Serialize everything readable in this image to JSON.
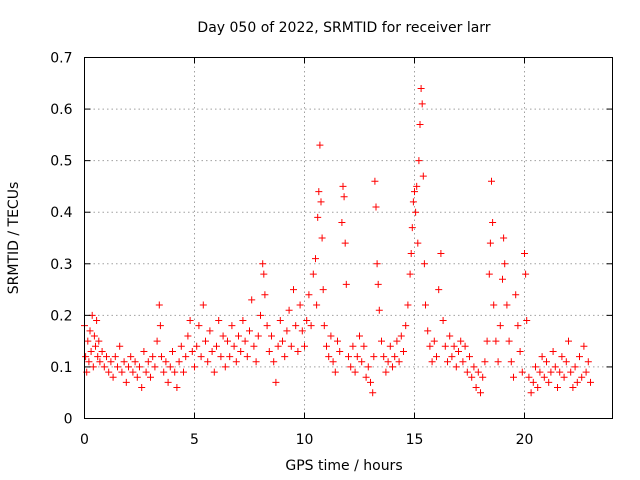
{
  "chart_data": {
    "type": "scatter",
    "title": "Day 050 of 2022, SRMTID for receiver larr",
    "xlabel": "GPS time / hours",
    "ylabel": "SRMTID / TECUs",
    "xlim": [
      0,
      24
    ],
    "ylim": [
      0,
      0.7
    ],
    "xticks": [
      0,
      5,
      10,
      15,
      20
    ],
    "xtick_labels": [
      "0",
      "5",
      "10",
      "15",
      "20"
    ],
    "yticks": [
      0,
      0.1,
      0.2,
      0.3,
      0.4,
      0.5,
      0.6,
      0.7
    ],
    "ytick_labels": [
      "0",
      "0.1",
      "0.2",
      "0.3",
      "0.4",
      "0.5",
      "0.6",
      "0.7"
    ],
    "grid": true,
    "marker": "+",
    "color": "#ff0000",
    "series": [
      {
        "name": "SRMTID",
        "points": [
          [
            0.0,
            0.18
          ],
          [
            0.05,
            0.12
          ],
          [
            0.1,
            0.09
          ],
          [
            0.15,
            0.15
          ],
          [
            0.2,
            0.11
          ],
          [
            0.25,
            0.17
          ],
          [
            0.3,
            0.13
          ],
          [
            0.35,
            0.2
          ],
          [
            0.4,
            0.1
          ],
          [
            0.45,
            0.16
          ],
          [
            0.5,
            0.14
          ],
          [
            0.55,
            0.19
          ],
          [
            0.6,
            0.12
          ],
          [
            0.65,
            0.15
          ],
          [
            0.7,
            0.11
          ],
          [
            0.8,
            0.13
          ],
          [
            0.9,
            0.1
          ],
          [
            1.0,
            0.12
          ],
          [
            1.1,
            0.09
          ],
          [
            1.2,
            0.11
          ],
          [
            1.3,
            0.08
          ],
          [
            1.4,
            0.12
          ],
          [
            1.5,
            0.1
          ],
          [
            1.6,
            0.14
          ],
          [
            1.7,
            0.09
          ],
          [
            1.8,
            0.11
          ],
          [
            1.9,
            0.07
          ],
          [
            2.0,
            0.1
          ],
          [
            2.1,
            0.12
          ],
          [
            2.2,
            0.09
          ],
          [
            2.3,
            0.11
          ],
          [
            2.4,
            0.08
          ],
          [
            2.5,
            0.1
          ],
          [
            2.6,
            0.06
          ],
          [
            2.7,
            0.13
          ],
          [
            2.8,
            0.09
          ],
          [
            2.9,
            0.11
          ],
          [
            3.0,
            0.08
          ],
          [
            3.1,
            0.12
          ],
          [
            3.2,
            0.1
          ],
          [
            3.3,
            0.15
          ],
          [
            3.4,
            0.22
          ],
          [
            3.45,
            0.18
          ],
          [
            3.5,
            0.12
          ],
          [
            3.6,
            0.09
          ],
          [
            3.7,
            0.11
          ],
          [
            3.8,
            0.07
          ],
          [
            3.9,
            0.1
          ],
          [
            4.0,
            0.13
          ],
          [
            4.1,
            0.09
          ],
          [
            4.2,
            0.06
          ],
          [
            4.3,
            0.11
          ],
          [
            4.4,
            0.14
          ],
          [
            4.5,
            0.09
          ],
          [
            4.6,
            0.12
          ],
          [
            4.7,
            0.16
          ],
          [
            4.8,
            0.19
          ],
          [
            4.9,
            0.13
          ],
          [
            5.0,
            0.1
          ],
          [
            5.1,
            0.14
          ],
          [
            5.2,
            0.18
          ],
          [
            5.3,
            0.12
          ],
          [
            5.4,
            0.22
          ],
          [
            5.5,
            0.15
          ],
          [
            5.6,
            0.11
          ],
          [
            5.7,
            0.17
          ],
          [
            5.8,
            0.13
          ],
          [
            5.9,
            0.09
          ],
          [
            6.0,
            0.14
          ],
          [
            6.1,
            0.19
          ],
          [
            6.2,
            0.12
          ],
          [
            6.3,
            0.16
          ],
          [
            6.4,
            0.1
          ],
          [
            6.5,
            0.15
          ],
          [
            6.6,
            0.12
          ],
          [
            6.7,
            0.18
          ],
          [
            6.8,
            0.14
          ],
          [
            6.9,
            0.11
          ],
          [
            7.0,
            0.16
          ],
          [
            7.1,
            0.13
          ],
          [
            7.2,
            0.19
          ],
          [
            7.3,
            0.15
          ],
          [
            7.4,
            0.12
          ],
          [
            7.5,
            0.17
          ],
          [
            7.6,
            0.23
          ],
          [
            7.7,
            0.14
          ],
          [
            7.8,
            0.11
          ],
          [
            7.9,
            0.16
          ],
          [
            8.0,
            0.2
          ],
          [
            8.1,
            0.3
          ],
          [
            8.15,
            0.28
          ],
          [
            8.2,
            0.24
          ],
          [
            8.3,
            0.18
          ],
          [
            8.4,
            0.13
          ],
          [
            8.5,
            0.16
          ],
          [
            8.6,
            0.11
          ],
          [
            8.7,
            0.07
          ],
          [
            8.8,
            0.14
          ],
          [
            8.9,
            0.19
          ],
          [
            9.0,
            0.15
          ],
          [
            9.1,
            0.12
          ],
          [
            9.2,
            0.17
          ],
          [
            9.3,
            0.21
          ],
          [
            9.4,
            0.14
          ],
          [
            9.5,
            0.25
          ],
          [
            9.6,
            0.18
          ],
          [
            9.7,
            0.13
          ],
          [
            9.8,
            0.22
          ],
          [
            9.9,
            0.17
          ],
          [
            10.0,
            0.14
          ],
          [
            10.1,
            0.19
          ],
          [
            10.2,
            0.24
          ],
          [
            10.3,
            0.18
          ],
          [
            10.4,
            0.28
          ],
          [
            10.5,
            0.31
          ],
          [
            10.55,
            0.22
          ],
          [
            10.6,
            0.39
          ],
          [
            10.65,
            0.44
          ],
          [
            10.7,
            0.53
          ],
          [
            10.75,
            0.42
          ],
          [
            10.8,
            0.35
          ],
          [
            10.85,
            0.25
          ],
          [
            10.9,
            0.18
          ],
          [
            11.0,
            0.14
          ],
          [
            11.1,
            0.12
          ],
          [
            11.2,
            0.16
          ],
          [
            11.3,
            0.11
          ],
          [
            11.4,
            0.09
          ],
          [
            11.5,
            0.15
          ],
          [
            11.6,
            0.13
          ],
          [
            11.7,
            0.38
          ],
          [
            11.75,
            0.45
          ],
          [
            11.8,
            0.43
          ],
          [
            11.85,
            0.34
          ],
          [
            11.9,
            0.26
          ],
          [
            12.0,
            0.12
          ],
          [
            12.1,
            0.1
          ],
          [
            12.2,
            0.14
          ],
          [
            12.3,
            0.09
          ],
          [
            12.4,
            0.12
          ],
          [
            12.5,
            0.16
          ],
          [
            12.6,
            0.11
          ],
          [
            12.7,
            0.14
          ],
          [
            12.8,
            0.08
          ],
          [
            12.9,
            0.1
          ],
          [
            13.0,
            0.07
          ],
          [
            13.1,
            0.05
          ],
          [
            13.15,
            0.12
          ],
          [
            13.2,
            0.46
          ],
          [
            13.25,
            0.41
          ],
          [
            13.3,
            0.3
          ],
          [
            13.35,
            0.26
          ],
          [
            13.4,
            0.21
          ],
          [
            13.5,
            0.15
          ],
          [
            13.6,
            0.12
          ],
          [
            13.7,
            0.09
          ],
          [
            13.8,
            0.11
          ],
          [
            13.9,
            0.14
          ],
          [
            14.0,
            0.1
          ],
          [
            14.1,
            0.12
          ],
          [
            14.2,
            0.15
          ],
          [
            14.3,
            0.11
          ],
          [
            14.4,
            0.16
          ],
          [
            14.5,
            0.13
          ],
          [
            14.6,
            0.18
          ],
          [
            14.7,
            0.22
          ],
          [
            14.8,
            0.28
          ],
          [
            14.85,
            0.32
          ],
          [
            14.9,
            0.37
          ],
          [
            14.95,
            0.42
          ],
          [
            15.0,
            0.44
          ],
          [
            15.05,
            0.4
          ],
          [
            15.1,
            0.45
          ],
          [
            15.15,
            0.34
          ],
          [
            15.2,
            0.5
          ],
          [
            15.25,
            0.57
          ],
          [
            15.3,
            0.64
          ],
          [
            15.35,
            0.61
          ],
          [
            15.4,
            0.47
          ],
          [
            15.45,
            0.3
          ],
          [
            15.5,
            0.22
          ],
          [
            15.6,
            0.17
          ],
          [
            15.7,
            0.14
          ],
          [
            15.8,
            0.11
          ],
          [
            15.9,
            0.15
          ],
          [
            16.0,
            0.12
          ],
          [
            16.1,
            0.25
          ],
          [
            16.2,
            0.32
          ],
          [
            16.3,
            0.19
          ],
          [
            16.4,
            0.14
          ],
          [
            16.5,
            0.11
          ],
          [
            16.6,
            0.16
          ],
          [
            16.7,
            0.12
          ],
          [
            16.8,
            0.14
          ],
          [
            16.9,
            0.1
          ],
          [
            17.0,
            0.13
          ],
          [
            17.1,
            0.15
          ],
          [
            17.2,
            0.11
          ],
          [
            17.3,
            0.14
          ],
          [
            17.4,
            0.09
          ],
          [
            17.5,
            0.12
          ],
          [
            17.6,
            0.08
          ],
          [
            17.7,
            0.1
          ],
          [
            17.8,
            0.06
          ],
          [
            17.9,
            0.09
          ],
          [
            18.0,
            0.05
          ],
          [
            18.1,
            0.08
          ],
          [
            18.2,
            0.11
          ],
          [
            18.3,
            0.15
          ],
          [
            18.4,
            0.28
          ],
          [
            18.45,
            0.34
          ],
          [
            18.5,
            0.46
          ],
          [
            18.55,
            0.38
          ],
          [
            18.6,
            0.22
          ],
          [
            18.7,
            0.15
          ],
          [
            18.8,
            0.11
          ],
          [
            18.9,
            0.18
          ],
          [
            19.0,
            0.27
          ],
          [
            19.05,
            0.35
          ],
          [
            19.1,
            0.3
          ],
          [
            19.2,
            0.22
          ],
          [
            19.3,
            0.15
          ],
          [
            19.4,
            0.11
          ],
          [
            19.5,
            0.08
          ],
          [
            19.6,
            0.24
          ],
          [
            19.7,
            0.18
          ],
          [
            19.8,
            0.13
          ],
          [
            19.9,
            0.09
          ],
          [
            20.0,
            0.32
          ],
          [
            20.05,
            0.28
          ],
          [
            20.1,
            0.19
          ],
          [
            20.2,
            0.08
          ],
          [
            20.3,
            0.05
          ],
          [
            20.4,
            0.07
          ],
          [
            20.5,
            0.1
          ],
          [
            20.6,
            0.06
          ],
          [
            20.7,
            0.09
          ],
          [
            20.8,
            0.12
          ],
          [
            20.9,
            0.08
          ],
          [
            21.0,
            0.11
          ],
          [
            21.1,
            0.07
          ],
          [
            21.2,
            0.09
          ],
          [
            21.3,
            0.13
          ],
          [
            21.4,
            0.1
          ],
          [
            21.5,
            0.06
          ],
          [
            21.6,
            0.09
          ],
          [
            21.7,
            0.12
          ],
          [
            21.8,
            0.08
          ],
          [
            21.9,
            0.11
          ],
          [
            22.0,
            0.15
          ],
          [
            22.1,
            0.09
          ],
          [
            22.2,
            0.06
          ],
          [
            22.3,
            0.1
          ],
          [
            22.4,
            0.07
          ],
          [
            22.5,
            0.12
          ],
          [
            22.6,
            0.08
          ],
          [
            22.7,
            0.14
          ],
          [
            22.8,
            0.09
          ],
          [
            22.9,
            0.11
          ],
          [
            23.0,
            0.07
          ]
        ]
      }
    ]
  }
}
